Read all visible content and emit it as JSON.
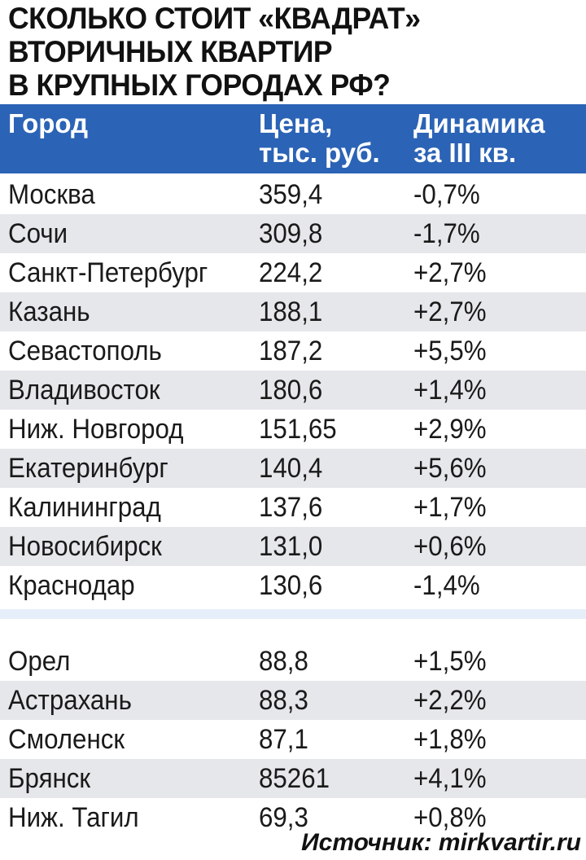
{
  "title_lines": [
    "СКОЛЬКО СТОИТ «КВАДРАТ»",
    "ВТОРИЧНЫХ КВАРТИР",
    "В КРУПНЫХ ГОРОДАХ РФ?"
  ],
  "header": {
    "city": "Город",
    "price_line1": "Цена,",
    "price_line2": "тыс. руб.",
    "dyn_line1": "Динамика",
    "dyn_line2": "за III кв."
  },
  "colors": {
    "header_bg": "#2b63b6",
    "row_shade": "#e6e7ea",
    "separator": "#e6eef9"
  },
  "chart_data": {
    "type": "table",
    "columns": [
      "Город",
      "Цена, тыс. руб.",
      "Динамика за III кв."
    ],
    "groups": [
      {
        "rows": [
          [
            "Москва",
            "359,4",
            "-0,7%"
          ],
          [
            "Сочи",
            "309,8",
            "-1,7%"
          ],
          [
            "Санкт-Петербург",
            "224,2",
            "+2,7%"
          ],
          [
            "Казань",
            "188,1",
            "+2,7%"
          ],
          [
            "Севастополь",
            "187,2",
            "+5,5%"
          ],
          [
            "Владивосток",
            "180,6",
            "+1,4%"
          ],
          [
            "Ниж. Новгород",
            "151,65",
            "+2,9%"
          ],
          [
            "Екатеринбург",
            "140,4",
            "+5,6%"
          ],
          [
            "Калининград",
            "137,6",
            "+1,7%"
          ],
          [
            "Новосибирск",
            "131,0",
            "+0,6%"
          ],
          [
            "Краснодар",
            "130,6",
            "-1,4%"
          ]
        ]
      },
      {
        "rows": [
          [
            "Орел",
            "88,8",
            "+1,5%"
          ],
          [
            "Астрахань",
            "88,3",
            "+2,2%"
          ],
          [
            "Смоленск",
            "87,1",
            "+1,8%"
          ],
          [
            "Брянск",
            "85261",
            "+4,1%"
          ],
          [
            "Ниж. Тагил",
            "69,3",
            "+0,8%"
          ]
        ]
      }
    ]
  },
  "source": "Источник: mirkvartir.ru"
}
